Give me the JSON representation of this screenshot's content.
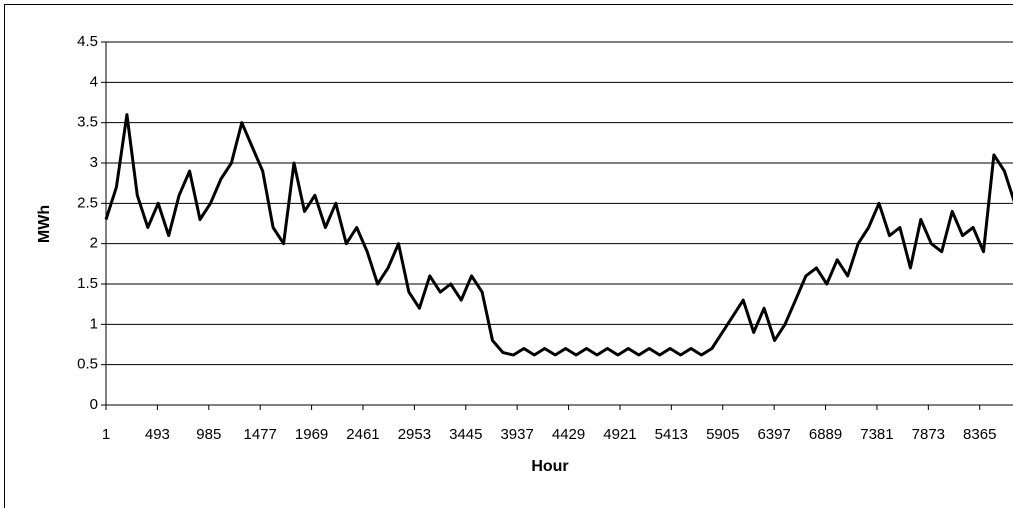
{
  "chart_data": {
    "type": "line",
    "x_label": "Hour",
    "y_label": "MWh",
    "x": [
      1,
      101,
      201,
      301,
      401,
      501,
      601,
      701,
      801,
      901,
      1001,
      1101,
      1201,
      1301,
      1401,
      1501,
      1601,
      1701,
      1801,
      1901,
      2001,
      2101,
      2201,
      2301,
      2401,
      2501,
      2601,
      2701,
      2801,
      2901,
      3001,
      3101,
      3201,
      3301,
      3401,
      3501,
      3601,
      3701,
      3801,
      3901,
      4001,
      4101,
      4201,
      4301,
      4401,
      4501,
      4601,
      4701,
      4801,
      4901,
      5001,
      5101,
      5201,
      5301,
      5401,
      5501,
      5601,
      5701,
      5801,
      5901,
      6001,
      6101,
      6201,
      6301,
      6401,
      6501,
      6601,
      6701,
      6801,
      6901,
      7001,
      7101,
      7201,
      7301,
      7401,
      7501,
      7601,
      7701,
      7801,
      7901,
      8001,
      8101,
      8201,
      8301,
      8401,
      8501,
      8601,
      8701
    ],
    "series": [
      {
        "name": "MWh",
        "color": "#000000",
        "values": [
          2.3,
          2.7,
          3.6,
          2.6,
          2.2,
          2.5,
          2.1,
          2.6,
          2.9,
          2.3,
          2.5,
          2.8,
          3.0,
          3.5,
          3.2,
          2.9,
          2.2,
          2.0,
          3.0,
          2.4,
          2.6,
          2.2,
          2.5,
          2.0,
          2.2,
          1.9,
          1.5,
          1.7,
          2.0,
          1.4,
          1.2,
          1.6,
          1.4,
          1.5,
          1.3,
          1.6,
          1.4,
          0.8,
          0.65,
          0.62,
          0.7,
          0.62,
          0.7,
          0.62,
          0.7,
          0.62,
          0.7,
          0.62,
          0.7,
          0.62,
          0.7,
          0.62,
          0.7,
          0.62,
          0.7,
          0.62,
          0.7,
          0.62,
          0.7,
          0.9,
          1.1,
          1.3,
          0.9,
          1.2,
          0.8,
          1.0,
          1.3,
          1.6,
          1.7,
          1.5,
          1.8,
          1.6,
          2.0,
          2.2,
          2.5,
          2.1,
          2.2,
          1.7,
          2.3,
          2.0,
          1.9,
          2.4,
          2.1,
          2.2,
          1.9,
          3.1,
          2.9,
          2.5
        ]
      }
    ],
    "xlim": [
      1,
      8760
    ],
    "xticks": [
      1,
      493,
      985,
      1477,
      1969,
      2461,
      2953,
      3445,
      3937,
      4429,
      4921,
      5413,
      5905,
      6397,
      6889,
      7381,
      7873,
      8365
    ],
    "ylim": [
      0,
      4.5
    ],
    "yticks": [
      0,
      0.5,
      1,
      1.5,
      2,
      2.5,
      3,
      3.5,
      4,
      4.5
    ],
    "grid": true
  }
}
